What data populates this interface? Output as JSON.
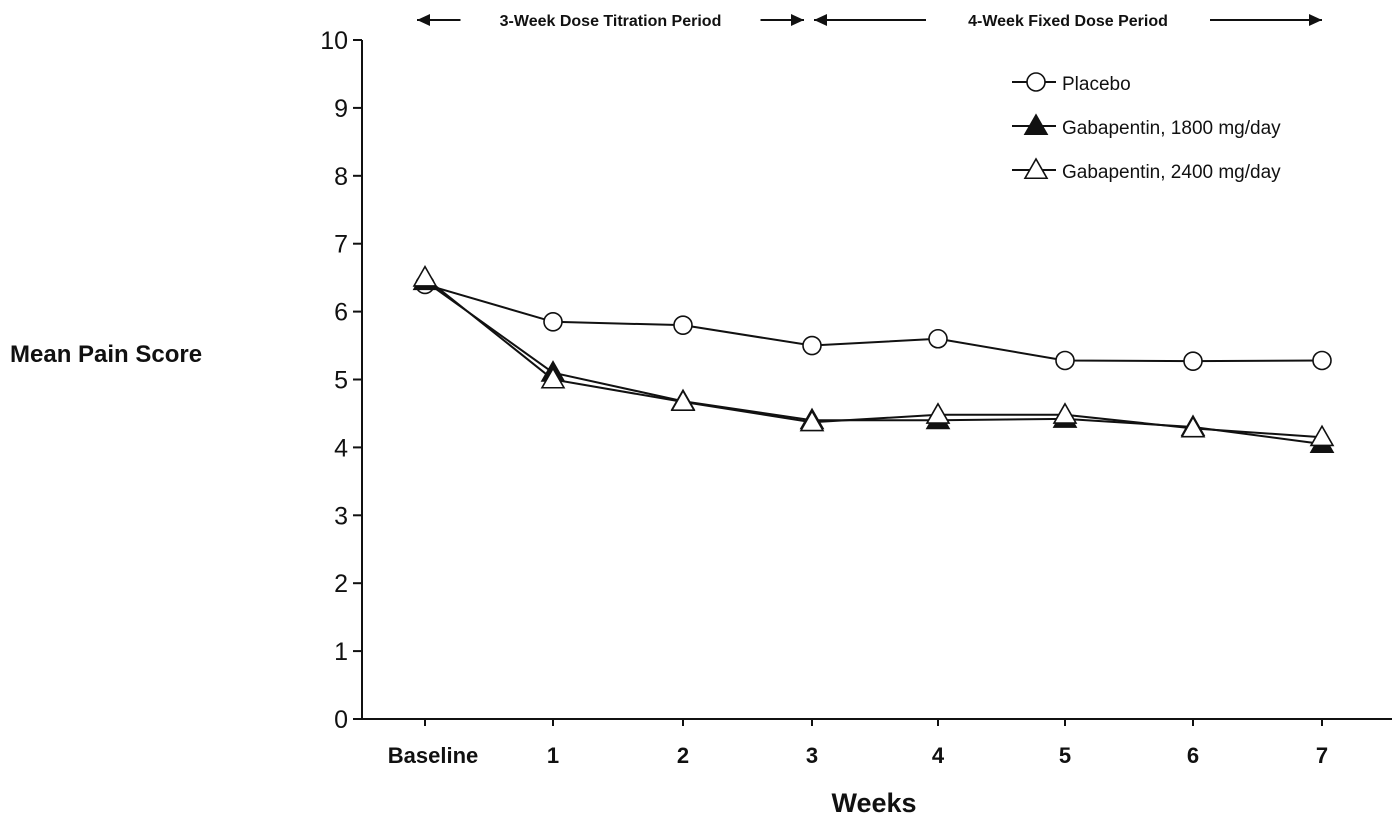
{
  "chart_data": {
    "type": "line",
    "title": "",
    "xlabel": "Weeks",
    "ylabel": "Mean Pain Score",
    "categories": [
      "Baseline",
      "1",
      "2",
      "3",
      "4",
      "5",
      "6",
      "7"
    ],
    "ylim": [
      0,
      10
    ],
    "yticks": [
      "0",
      "1",
      "2",
      "3",
      "4",
      "5",
      "6",
      "7",
      "8",
      "9",
      "10"
    ],
    "grid": false,
    "legend_position": "top-right",
    "periods": [
      {
        "label": "3-Week Dose Titration Period",
        "from": "Baseline",
        "to": "3"
      },
      {
        "label": "4-Week Fixed Dose Period",
        "from": "3",
        "to": "7"
      }
    ],
    "series": [
      {
        "name": "Placebo",
        "marker": "circle-open",
        "color": "#111111",
        "values": [
          6.4,
          5.85,
          5.8,
          5.5,
          5.6,
          5.28,
          5.27,
          5.28
        ]
      },
      {
        "name": "Gabapentin, 1800 mg/day",
        "marker": "triangle-filled",
        "color": "#111111",
        "values": [
          6.45,
          5.1,
          4.68,
          4.4,
          4.4,
          4.42,
          4.3,
          4.05
        ]
      },
      {
        "name": "Gabapentin, 2400 mg/day",
        "marker": "triangle-open",
        "color": "#111111",
        "values": [
          6.5,
          5.0,
          4.67,
          4.37,
          4.48,
          4.48,
          4.28,
          4.15
        ]
      }
    ]
  }
}
